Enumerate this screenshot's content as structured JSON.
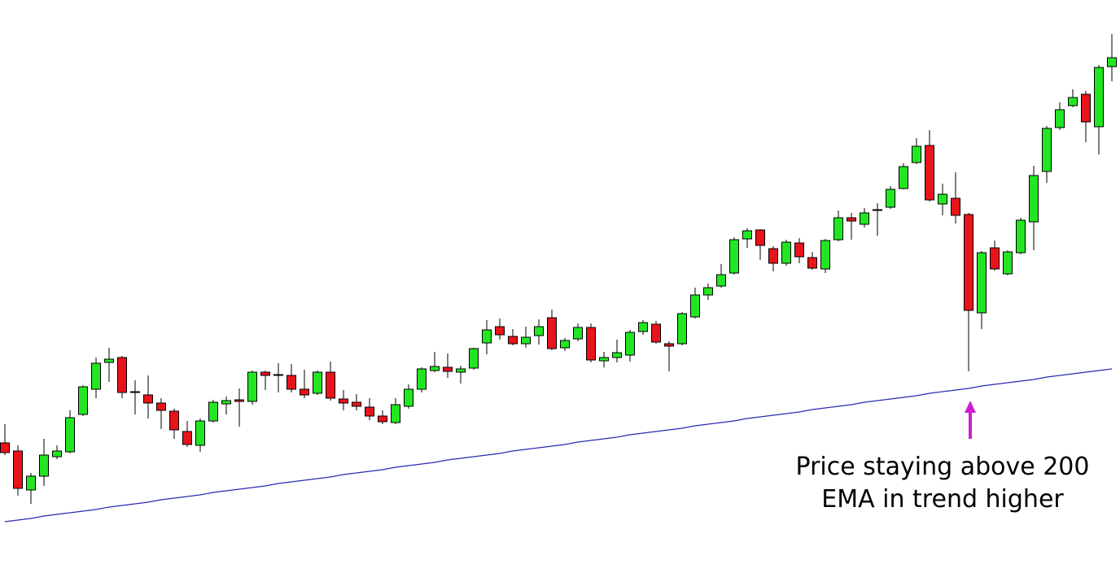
{
  "chart_data": {
    "type": "candlestick",
    "annotation": [
      "Price staying above 200",
      "EMA in trend higher"
    ],
    "ylim": [
      0,
      699
    ],
    "up_color": "#22e622",
    "down_color": "#e8131b",
    "open": [
      154,
      144,
      96,
      113,
      137,
      143,
      189,
      220,
      253,
      259,
      217,
      213,
      203,
      193,
      168,
      151,
      181,
      202,
      207,
      205,
      241,
      238,
      237,
      220,
      215,
      241,
      208,
      204,
      198,
      187,
      179,
      199,
      220,
      243,
      247,
      241,
      246,
      277,
      297,
      285,
      276,
      286,
      308,
      271,
      282,
      296,
      255,
      259,
      262,
      291,
      300,
      276,
      276,
      309,
      336,
      347,
      363,
      405,
      416,
      393,
      375,
      400,
      382,
      368,
      404,
      431,
      423,
      441,
      444,
      467,
      499,
      520,
      448,
      455,
      435,
      314,
      394,
      362,
      388,
      426,
      488,
      542,
      569,
      583,
      543,
      617
    ],
    "high": [
      177,
      151,
      117,
      159,
      151,
      194,
      225,
      259,
      271,
      261,
      231,
      237,
      209,
      196,
      181,
      184,
      207,
      211,
      221,
      243,
      243,
      252,
      251,
      244,
      243,
      254,
      219,
      214,
      209,
      194,
      209,
      226,
      247,
      266,
      264,
      249,
      271,
      305,
      307,
      294,
      297,
      306,
      318,
      283,
      301,
      301,
      266,
      281,
      293,
      305,
      304,
      279,
      315,
      345,
      350,
      374,
      407,
      418,
      417,
      396,
      404,
      406,
      389,
      405,
      440,
      437,
      443,
      449,
      470,
      498,
      529,
      539,
      473,
      487,
      437,
      390,
      403,
      391,
      431,
      495,
      544,
      573,
      589,
      587,
      619,
      657
    ],
    "low": [
      139,
      89,
      79,
      101,
      134,
      141,
      187,
      209,
      229,
      209,
      189,
      184,
      171,
      159,
      149,
      143,
      179,
      189,
      174,
      201,
      219,
      216,
      216,
      209,
      213,
      206,
      194,
      194,
      182,
      177,
      177,
      196,
      216,
      241,
      234,
      227,
      244,
      263,
      281,
      274,
      271,
      275,
      268,
      267,
      279,
      253,
      247,
      253,
      254,
      287,
      276,
      242,
      274,
      307,
      330,
      345,
      361,
      394,
      379,
      365,
      372,
      375,
      367,
      363,
      402,
      404,
      419,
      409,
      442,
      466,
      497,
      451,
      434,
      424,
      242,
      294,
      366,
      360,
      386,
      391,
      474,
      539,
      567,
      524,
      509,
      599
    ],
    "close": [
      142,
      98,
      113,
      139,
      144,
      185,
      223,
      252,
      257,
      216,
      217,
      203,
      194,
      170,
      152,
      181,
      204,
      206,
      205,
      241,
      237,
      238,
      220,
      213,
      241,
      209,
      203,
      199,
      187,
      180,
      201,
      220,
      245,
      248,
      242,
      245,
      270,
      293,
      287,
      276,
      284,
      297,
      270,
      280,
      296,
      256,
      259,
      265,
      290,
      302,
      278,
      273,
      313,
      336,
      345,
      361,
      404,
      415,
      397,
      375,
      401,
      383,
      369,
      403,
      431,
      427,
      437,
      441,
      466,
      494,
      519,
      453,
      460,
      434,
      317,
      388,
      368,
      389,
      428,
      483,
      541,
      564,
      579,
      549,
      616,
      628
    ],
    "ema": {
      "color": "#2b2bb0",
      "values": [
        57,
        59,
        61,
        64,
        66,
        68,
        70,
        72,
        75,
        77,
        79,
        81,
        84,
        86,
        88,
        90,
        93,
        95,
        97,
        99,
        101,
        104,
        106,
        108,
        110,
        112,
        115,
        117,
        119,
        121,
        124,
        126,
        128,
        130,
        133,
        135,
        137,
        139,
        141,
        144,
        146,
        148,
        150,
        152,
        155,
        157,
        159,
        161,
        164,
        166,
        168,
        170,
        172,
        175,
        177,
        179,
        181,
        184,
        186,
        188,
        190,
        192,
        195,
        197,
        199,
        201,
        204,
        206,
        208,
        210,
        212,
        215,
        217,
        219,
        221,
        224,
        226,
        228,
        230,
        232,
        235,
        237,
        239,
        241,
        243,
        245
      ]
    },
    "annotation_color": "#cc1fcc"
  }
}
